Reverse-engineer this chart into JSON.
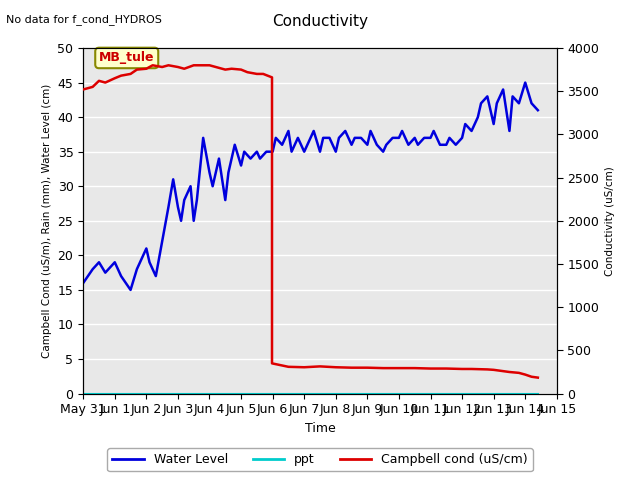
{
  "title": "Conductivity",
  "top_left_text": "No data for f_cond_HYDROS",
  "xlabel": "Time",
  "ylabel_left": "Campbell Cond (uS/m), Rain (mm), Water Level (cm)",
  "ylabel_right": "Conductivity (uS/cm)",
  "ylim_left": [
    0,
    50
  ],
  "ylim_right": [
    0,
    4000
  ],
  "plot_bg_color": "#e8e8e8",
  "fig_bg_color": "#ffffff",
  "legend_items": [
    {
      "label": "Water Level",
      "color": "#0000dd",
      "linestyle": "-"
    },
    {
      "label": "ppt",
      "color": "#00cccc",
      "linestyle": "-"
    },
    {
      "label": "Campbell cond (uS/cm)",
      "color": "#dd0000",
      "linestyle": "-"
    }
  ],
  "annotation_box": {
    "text": "MB_tule",
    "facecolor": "#ffffcc",
    "edgecolor": "#888800",
    "fontsize": 9,
    "fontcolor": "#cc0000",
    "fontweight": "bold"
  },
  "water_level": {
    "color": "#0000dd",
    "linestyle": "-",
    "linewidth": 1.8,
    "data_x": [
      0,
      0.3,
      0.5,
      0.7,
      1.0,
      1.2,
      1.5,
      1.7,
      2.0,
      2.1,
      2.3,
      2.5,
      2.7,
      2.85,
      3.0,
      3.1,
      3.2,
      3.4,
      3.5,
      3.6,
      3.8,
      4.0,
      4.1,
      4.3,
      4.5,
      4.6,
      4.8,
      5.0,
      5.1,
      5.3,
      5.5,
      5.6,
      5.8,
      6.0,
      6.1,
      6.3,
      6.5,
      6.6,
      6.8,
      7.0,
      7.1,
      7.3,
      7.5,
      7.6,
      7.8,
      8.0,
      8.1,
      8.3,
      8.5,
      8.6,
      8.8,
      9.0,
      9.1,
      9.3,
      9.5,
      9.6,
      9.8,
      10.0,
      10.1,
      10.3,
      10.5,
      10.6,
      10.8,
      11.0,
      11.1,
      11.3,
      11.5,
      11.6,
      11.8,
      12.0,
      12.1,
      12.3,
      12.5,
      12.6,
      12.8,
      13.0,
      13.1,
      13.3,
      13.5,
      13.6,
      13.8,
      14.0,
      14.2,
      14.4
    ],
    "data_y": [
      16,
      18,
      19,
      17.5,
      19,
      17,
      15,
      18,
      21,
      19,
      17,
      22,
      27,
      31,
      27,
      25,
      28,
      30,
      25,
      28,
      37,
      32,
      30,
      34,
      28,
      32,
      36,
      33,
      35,
      34,
      35,
      34,
      35,
      35,
      37,
      36,
      38,
      35,
      37,
      35,
      36,
      38,
      35,
      37,
      37,
      35,
      37,
      38,
      36,
      37,
      37,
      36,
      38,
      36,
      35,
      36,
      37,
      37,
      38,
      36,
      37,
      36,
      37,
      37,
      38,
      36,
      36,
      37,
      36,
      37,
      39,
      38,
      40,
      42,
      43,
      39,
      42,
      44,
      38,
      43,
      42,
      45,
      42,
      41
    ]
  },
  "campbell_cond": {
    "color": "#dd0000",
    "linestyle": "-",
    "linewidth": 1.8,
    "data_x": [
      0,
      0.3,
      0.5,
      0.7,
      1.0,
      1.2,
      1.5,
      1.7,
      2.0,
      2.2,
      2.5,
      2.7,
      3.0,
      3.2,
      3.5,
      3.7,
      4.0,
      4.2,
      4.5,
      4.7,
      5.0,
      5.2,
      5.5,
      5.7,
      5.98,
      5.9801,
      6.5,
      7.0,
      7.5,
      8.0,
      8.5,
      9.0,
      9.5,
      10.0,
      10.5,
      11.0,
      11.5,
      12.0,
      12.3,
      12.5,
      12.8,
      13.0,
      13.3,
      13.5,
      13.8,
      14.0,
      14.2,
      14.4
    ],
    "data_y": [
      3520,
      3550,
      3620,
      3600,
      3650,
      3680,
      3700,
      3750,
      3760,
      3800,
      3780,
      3800,
      3780,
      3760,
      3800,
      3800,
      3800,
      3780,
      3750,
      3760,
      3750,
      3720,
      3700,
      3700,
      3660,
      350,
      310,
      305,
      315,
      305,
      300,
      300,
      295,
      295,
      295,
      290,
      290,
      285,
      285,
      283,
      280,
      275,
      260,
      250,
      240,
      220,
      195,
      185
    ]
  },
  "ppt": {
    "color": "#00cccc",
    "linestyle": "-",
    "linewidth": 1.5,
    "data_x": [
      0,
      14.4
    ],
    "data_y": [
      0,
      0
    ]
  },
  "xtick_days": [
    0,
    1,
    2,
    3,
    4,
    5,
    6,
    7,
    8,
    9,
    10,
    11,
    12,
    13,
    14,
    15
  ],
  "xtick_labels": [
    "May 31",
    "Jun 1",
    "Jun 2",
    "Jun 3",
    "Jun 4",
    "Jun 5",
    "Jun 6",
    "Jun 7",
    "Jun 8",
    "Jun 9",
    "Jun 10",
    "Jun 11",
    "Jun 12",
    "Jun 13",
    "Jun 14",
    "Jun 15"
  ],
  "yticks_left": [
    0,
    5,
    10,
    15,
    20,
    25,
    30,
    35,
    40,
    45,
    50
  ],
  "yticks_right": [
    0,
    500,
    1000,
    1500,
    2000,
    2500,
    3000,
    3500,
    4000
  ]
}
